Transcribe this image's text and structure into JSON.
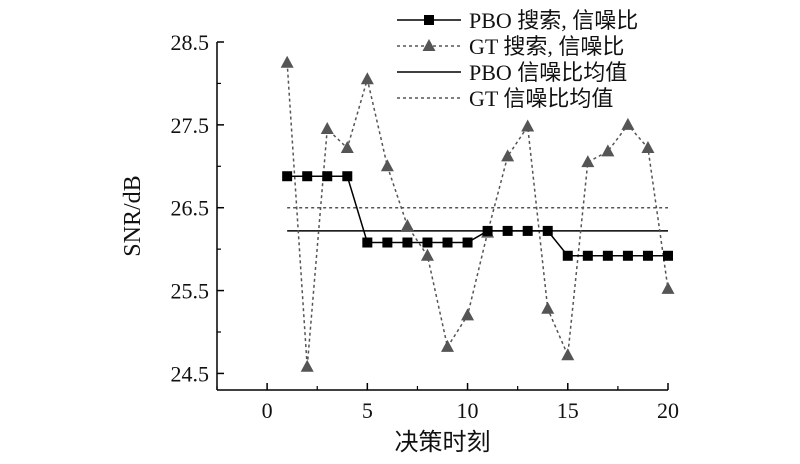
{
  "chart_data": {
    "type": "line",
    "title": "",
    "xlabel": "决策时刻",
    "ylabel": "SNR/dB",
    "xlim": [
      -2.5,
      20
    ],
    "ylim": [
      24.3,
      28.5
    ],
    "xticks": [
      0,
      5,
      10,
      15,
      20
    ],
    "xtick_labels": [
      "0",
      "5",
      "10",
      "15",
      "20"
    ],
    "yticks": [
      24.5,
      25.5,
      26.5,
      27.5,
      28.5
    ],
    "ytick_labels": [
      "24.5",
      "25.5",
      "26.5",
      "27.5",
      "28.5"
    ],
    "grid": false,
    "legend_position": "top-right",
    "series": [
      {
        "name": "PBO 搜索, 信噪比",
        "style": "solid",
        "marker": "square",
        "color": "#000000",
        "x": [
          1,
          2,
          3,
          4,
          5,
          6,
          7,
          8,
          9,
          10,
          11,
          12,
          13,
          14,
          15,
          16,
          17,
          18,
          19,
          20
        ],
        "y": [
          26.88,
          26.88,
          26.88,
          26.88,
          26.08,
          26.08,
          26.08,
          26.08,
          26.08,
          26.08,
          26.22,
          26.22,
          26.22,
          26.22,
          25.92,
          25.92,
          25.92,
          25.92,
          25.92,
          25.92
        ]
      },
      {
        "name": "GT 搜索, 信噪比",
        "style": "dotted",
        "marker": "triangle",
        "color": "#555555",
        "x": [
          1,
          2,
          3,
          4,
          5,
          6,
          7,
          8,
          9,
          10,
          11,
          12,
          13,
          14,
          15,
          16,
          17,
          18,
          19,
          20
        ],
        "y": [
          28.25,
          24.58,
          27.45,
          27.22,
          28.05,
          27.0,
          26.28,
          25.92,
          24.82,
          25.2,
          26.2,
          27.12,
          27.48,
          25.28,
          24.72,
          27.05,
          27.18,
          27.5,
          27.22,
          25.52
        ]
      },
      {
        "name": "PBO 信噪比均值",
        "style": "solid",
        "marker": "none",
        "color": "#000000",
        "x": [
          1,
          20
        ],
        "y": [
          26.22,
          26.22
        ]
      },
      {
        "name": "GT 信噪比均值",
        "style": "dotted",
        "marker": "none",
        "color": "#555555",
        "x": [
          1,
          20
        ],
        "y": [
          26.5,
          26.5
        ]
      }
    ]
  }
}
